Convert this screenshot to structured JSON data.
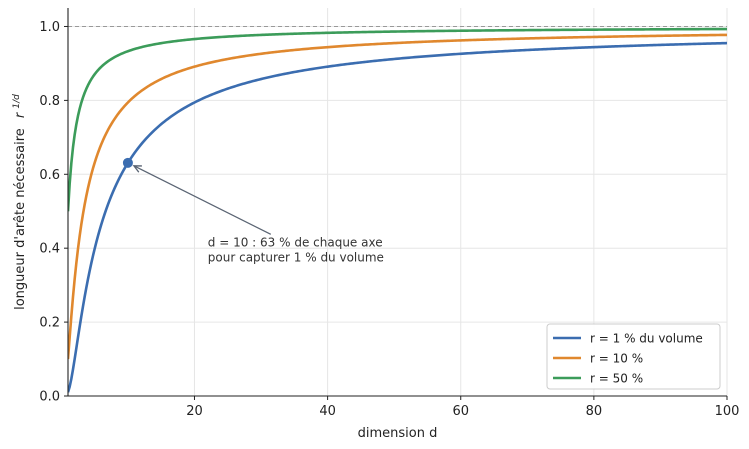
{
  "chart_data": {
    "type": "line",
    "xlabel": "dimension d",
    "ylabel_text": "longueur d'arête nécessaire",
    "ylabel_math": {
      "base": "r",
      "exponent": "1/d"
    },
    "xlim": [
      1,
      100
    ],
    "ylim": [
      0,
      1.05
    ],
    "x_ticks": [
      20,
      40,
      60,
      80,
      100
    ],
    "y_ticks": [
      0.0,
      0.2,
      0.4,
      0.6,
      0.8,
      1.0
    ],
    "x_tick_labels": [
      "20",
      "40",
      "60",
      "80",
      "100"
    ],
    "y_tick_labels": [
      "0.0",
      "0.2",
      "0.4",
      "0.6",
      "0.8",
      "1.0"
    ],
    "grid": true,
    "reference_line": {
      "y": 1.0,
      "style": "dashed",
      "color": "#999999"
    },
    "series": [
      {
        "name": "r = 1 % du volume",
        "r": 0.01,
        "color": "#3b6db0",
        "x": [
          1,
          2,
          3,
          4,
          5,
          6,
          7,
          8,
          9,
          10,
          12,
          15,
          20,
          25,
          30,
          40,
          50,
          60,
          70,
          80,
          90,
          100
        ],
        "y": [
          0.01,
          0.1,
          0.215,
          0.316,
          0.398,
          0.464,
          0.518,
          0.562,
          0.599,
          0.631,
          0.681,
          0.736,
          0.794,
          0.832,
          0.858,
          0.891,
          0.912,
          0.926,
          0.936,
          0.944,
          0.95,
          0.955
        ]
      },
      {
        "name": "r = 10 %",
        "r": 0.1,
        "color": "#e0882e",
        "x": [
          1,
          2,
          3,
          4,
          5,
          6,
          7,
          8,
          9,
          10,
          12,
          15,
          20,
          25,
          30,
          40,
          50,
          60,
          70,
          80,
          90,
          100
        ],
        "y": [
          0.1,
          0.316,
          0.464,
          0.562,
          0.631,
          0.681,
          0.72,
          0.75,
          0.774,
          0.794,
          0.825,
          0.858,
          0.891,
          0.912,
          0.926,
          0.944,
          0.955,
          0.962,
          0.968,
          0.972,
          0.975,
          0.977
        ]
      },
      {
        "name": "r = 50 %",
        "r": 0.5,
        "color": "#3c9c5a",
        "x": [
          1,
          2,
          3,
          4,
          5,
          6,
          7,
          8,
          9,
          10,
          12,
          15,
          20,
          25,
          30,
          40,
          50,
          60,
          70,
          80,
          90,
          100
        ],
        "y": [
          0.5,
          0.707,
          0.794,
          0.841,
          0.871,
          0.891,
          0.906,
          0.917,
          0.926,
          0.933,
          0.944,
          0.955,
          0.966,
          0.973,
          0.977,
          0.983,
          0.986,
          0.989,
          0.99,
          0.991,
          0.992,
          0.993
        ]
      }
    ],
    "highlight_point": {
      "x": 10,
      "y": 0.631,
      "color": "#3b6db0"
    },
    "annotation": {
      "lines": [
        "d = 10 : 63 % de chaque axe",
        "pour capturer 1 % du volume"
      ],
      "text_anchor_data": {
        "x": 22,
        "y": 0.405
      }
    },
    "legend_position": "lower-right"
  }
}
